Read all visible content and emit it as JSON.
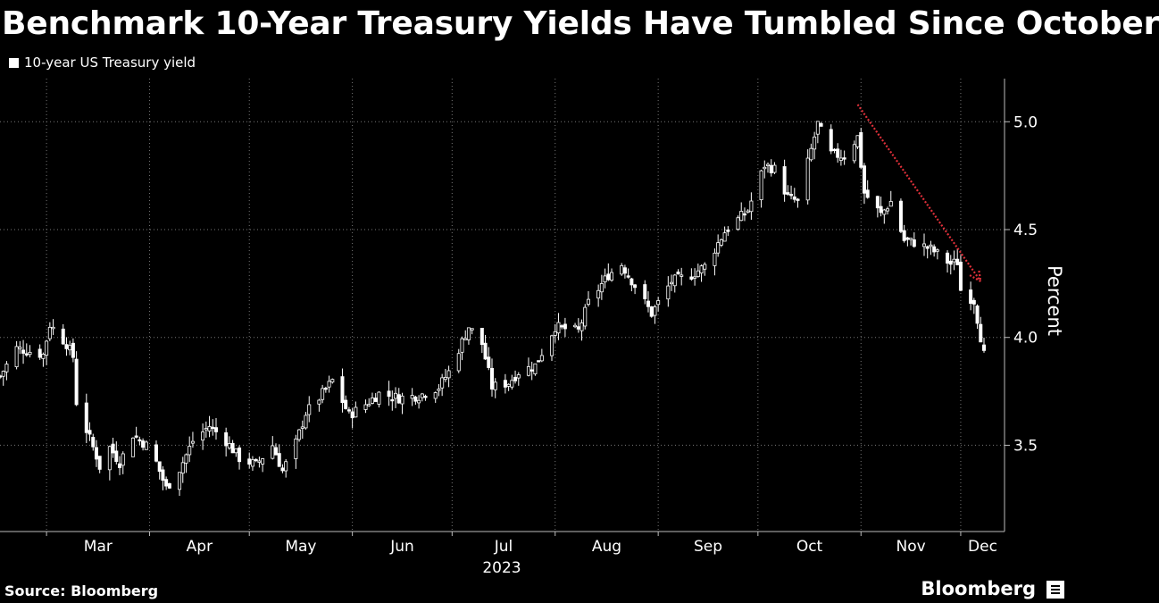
{
  "title": "Benchmark 10-Year Treasury Yields Have Tumbled Since October",
  "legend_label": "10-year US Treasury yield",
  "source": "Source: Bloomberg",
  "brand": "Bloomberg",
  "colors": {
    "background": "#000000",
    "candles": "#ffffff",
    "trend_arrow": "#e0303a",
    "grid": "#666666"
  },
  "chart_data": {
    "type": "candlestick",
    "title": "Benchmark 10-Year Treasury Yields Have Tumbled Since October",
    "ylabel": "Percent",
    "ylim": [
      3.1,
      5.2
    ],
    "yticks": [
      3.5,
      4.0,
      4.5,
      5.0
    ],
    "ytick_labels": [
      "3.5",
      "4.0",
      "4.5",
      "5.0"
    ],
    "x_year_label": "2023",
    "month_labels": [
      "Mar",
      "Apr",
      "May",
      "Jun",
      "Jul",
      "Aug",
      "Sep",
      "Oct",
      "Nov",
      "Dec"
    ],
    "x_range": [
      "2023-02-15",
      "2023-12-08"
    ],
    "grid": true,
    "legend_placement": "top-left",
    "series": [
      {
        "name": "10-year US Treasury yield"
      }
    ],
    "daily_close_path": [
      [
        "2023-02-15",
        3.82
      ],
      [
        "2023-02-20",
        3.95
      ],
      [
        "2023-02-28",
        3.92
      ],
      [
        "2023-03-02",
        4.06
      ],
      [
        "2023-03-07",
        3.97
      ],
      [
        "2023-03-09",
        3.91
      ],
      [
        "2023-03-10",
        3.7
      ],
      [
        "2023-03-13",
        3.57
      ],
      [
        "2023-03-16",
        3.45
      ],
      [
        "2023-03-17",
        3.4
      ],
      [
        "2023-03-20",
        3.49
      ],
      [
        "2023-03-23",
        3.42
      ],
      [
        "2023-03-27",
        3.55
      ],
      [
        "2023-03-31",
        3.5
      ],
      [
        "2023-04-03",
        3.42
      ],
      [
        "2023-04-06",
        3.3
      ],
      [
        "2023-04-10",
        3.39
      ],
      [
        "2023-04-14",
        3.52
      ],
      [
        "2023-04-19",
        3.59
      ],
      [
        "2023-04-24",
        3.52
      ],
      [
        "2023-04-28",
        3.44
      ],
      [
        "2023-05-03",
        3.41
      ],
      [
        "2023-05-08",
        3.5
      ],
      [
        "2023-05-11",
        3.38
      ],
      [
        "2023-05-15",
        3.51
      ],
      [
        "2023-05-18",
        3.65
      ],
      [
        "2023-05-22",
        3.72
      ],
      [
        "2023-05-26",
        3.8
      ],
      [
        "2023-05-31",
        3.64
      ],
      [
        "2023-06-05",
        3.69
      ],
      [
        "2023-06-09",
        3.74
      ],
      [
        "2023-06-15",
        3.72
      ],
      [
        "2023-06-21",
        3.73
      ],
      [
        "2023-06-27",
        3.77
      ],
      [
        "2023-06-30",
        3.84
      ],
      [
        "2023-07-06",
        4.05
      ],
      [
        "2023-07-10",
        3.97
      ],
      [
        "2023-07-13",
        3.77
      ],
      [
        "2023-07-18",
        3.79
      ],
      [
        "2023-07-21",
        3.84
      ],
      [
        "2023-07-26",
        3.87
      ],
      [
        "2023-08-01",
        4.05
      ],
      [
        "2023-08-04",
        4.04
      ],
      [
        "2023-08-08",
        4.03
      ],
      [
        "2023-08-11",
        4.16
      ],
      [
        "2023-08-17",
        4.29
      ],
      [
        "2023-08-21",
        4.34
      ],
      [
        "2023-08-25",
        4.24
      ],
      [
        "2023-08-30",
        4.11
      ],
      [
        "2023-09-05",
        4.26
      ],
      [
        "2023-09-11",
        4.29
      ],
      [
        "2023-09-15",
        4.33
      ],
      [
        "2023-09-21",
        4.49
      ],
      [
        "2023-09-28",
        4.59
      ],
      [
        "2023-10-03",
        4.8
      ],
      [
        "2023-10-06",
        4.78
      ],
      [
        "2023-10-10",
        4.65
      ],
      [
        "2023-10-13",
        4.63
      ],
      [
        "2023-10-19",
        4.99
      ],
      [
        "2023-10-23",
        4.85
      ],
      [
        "2023-10-27",
        4.84
      ],
      [
        "2023-10-31",
        4.93
      ],
      [
        "2023-11-02",
        4.67
      ],
      [
        "2023-11-07",
        4.57
      ],
      [
        "2023-11-10",
        4.63
      ],
      [
        "2023-11-14",
        4.45
      ],
      [
        "2023-11-17",
        4.44
      ],
      [
        "2023-11-22",
        4.41
      ],
      [
        "2023-11-28",
        4.34
      ],
      [
        "2023-11-30",
        4.35
      ],
      [
        "2023-12-01",
        4.22
      ],
      [
        "2023-12-05",
        4.17
      ],
      [
        "2023-12-08",
        3.92
      ]
    ],
    "annotations": [
      {
        "type": "arrow",
        "from": [
          "2023-10-31",
          5.08
        ],
        "to": [
          "2023-12-07",
          4.26
        ],
        "style": "dotted red"
      }
    ]
  }
}
